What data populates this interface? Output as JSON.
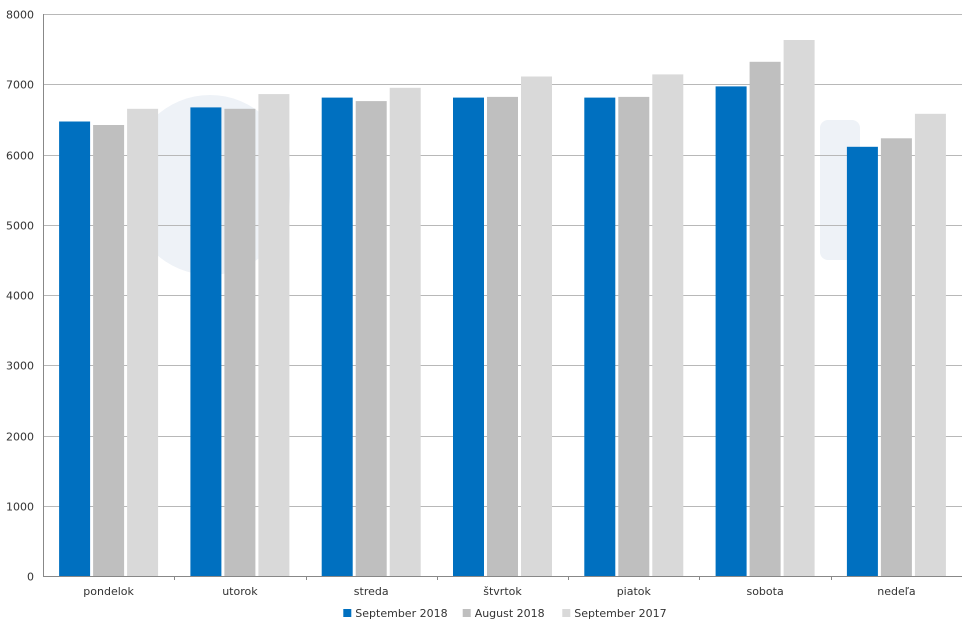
{
  "chart_data": {
    "type": "bar",
    "title": "",
    "xlabel": "",
    "ylabel": "",
    "ylim": [
      0,
      8000
    ],
    "yticks": [
      0,
      1000,
      2000,
      3000,
      4000,
      5000,
      6000,
      7000,
      8000
    ],
    "grid": true,
    "legend_position": "bottom-center",
    "categories": [
      "pondelok",
      "utorok",
      "streda",
      "štvrtok",
      "piatok",
      "sobota",
      "nedeľa"
    ],
    "series": [
      {
        "name": "September 2018",
        "color": "#0070c0",
        "values": [
          6470,
          6670,
          6810,
          6810,
          6810,
          6970,
          6110
        ]
      },
      {
        "name": "August 2018",
        "color": "#bfbfbf",
        "values": [
          6420,
          6650,
          6760,
          6820,
          6820,
          7320,
          6230
        ]
      },
      {
        "name": "September 2017",
        "color": "#d9d9d9",
        "values": [
          6650,
          6860,
          6950,
          7110,
          7140,
          7630,
          6580
        ]
      }
    ]
  }
}
